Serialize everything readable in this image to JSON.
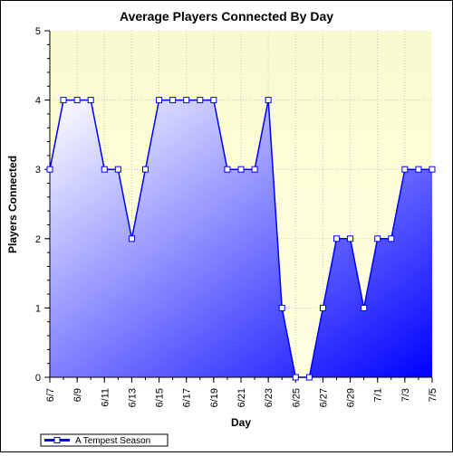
{
  "chart_data": {
    "type": "area",
    "title": "Average Players Connected By Day",
    "xlabel": "Day",
    "ylabel": "Players Connected",
    "ylim": [
      0,
      5
    ],
    "yticks": [
      "0",
      "1",
      "2",
      "3",
      "4",
      "5"
    ],
    "grid": true,
    "legend_position": "bottom-left",
    "x": [
      "6/7",
      "6/8",
      "6/9",
      "6/10",
      "6/11",
      "6/12",
      "6/13",
      "6/14",
      "6/15",
      "6/16",
      "6/17",
      "6/18",
      "6/19",
      "6/20",
      "6/21",
      "6/22",
      "6/23",
      "6/24",
      "6/25",
      "6/26",
      "6/27",
      "6/28",
      "6/29",
      "6/30",
      "7/1",
      "7/2",
      "7/3",
      "7/4",
      "7/5"
    ],
    "xtick_labels": [
      "6/7",
      "6/9",
      "6/11",
      "6/13",
      "6/15",
      "6/17",
      "6/19",
      "6/21",
      "6/23",
      "6/25",
      "6/27",
      "6/29",
      "7/1",
      "7/3",
      "7/5"
    ],
    "series": [
      {
        "name": "A Tempest Season",
        "values": [
          3,
          4,
          4,
          4,
          3,
          3,
          2,
          3,
          4,
          4,
          4,
          4,
          4,
          3,
          3,
          3,
          4,
          1,
          0,
          0,
          1,
          2,
          2,
          1,
          2,
          2,
          3,
          3,
          3
        ]
      }
    ],
    "colors": {
      "line": "#0000ff",
      "fill_start": "#ffffff",
      "fill_end": "#0000ff",
      "plot_background": "#ffffe0",
      "plot_background_top": "#fafad0",
      "grid": "#c8c8c8",
      "marker_fill": "#ffffff"
    }
  }
}
